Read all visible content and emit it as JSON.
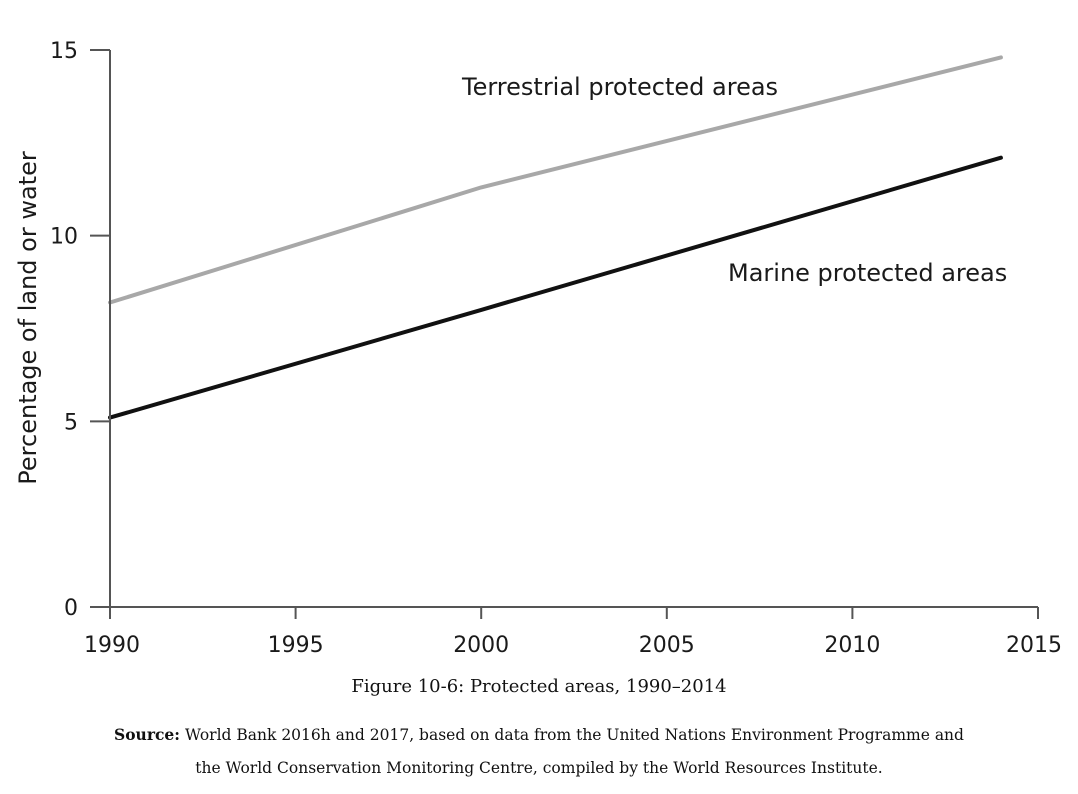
{
  "chart_data": {
    "type": "line",
    "title": "",
    "xlabel": "",
    "ylabel": "Percentage of land or water",
    "xlim": [
      1990,
      2015
    ],
    "ylim": [
      0,
      15
    ],
    "xticks": [
      1990,
      1995,
      2000,
      2005,
      2010,
      2015
    ],
    "yticks": [
      0,
      5,
      10,
      15
    ],
    "grid": false,
    "series": [
      {
        "name": "Terrestrial protected areas",
        "color": "#a8a8a8",
        "x": [
          1990,
          2000,
          2014
        ],
        "y": [
          8.2,
          11.3,
          14.8
        ]
      },
      {
        "name": "Marine protected areas",
        "color": "#111111",
        "x": [
          1990,
          2000,
          2014
        ],
        "y": [
          5.1,
          8.0,
          12.1
        ]
      }
    ]
  },
  "caption": {
    "figure": "Figure 10-6: Protected areas, 1990–2014",
    "source_label": "Source:",
    "source_line1": "World Bank 2016h and 2017, based on data from the United Nations Environment Programme and",
    "source_line2": "the World Conservation Monitoring Centre, compiled by the World Resources Institute."
  }
}
